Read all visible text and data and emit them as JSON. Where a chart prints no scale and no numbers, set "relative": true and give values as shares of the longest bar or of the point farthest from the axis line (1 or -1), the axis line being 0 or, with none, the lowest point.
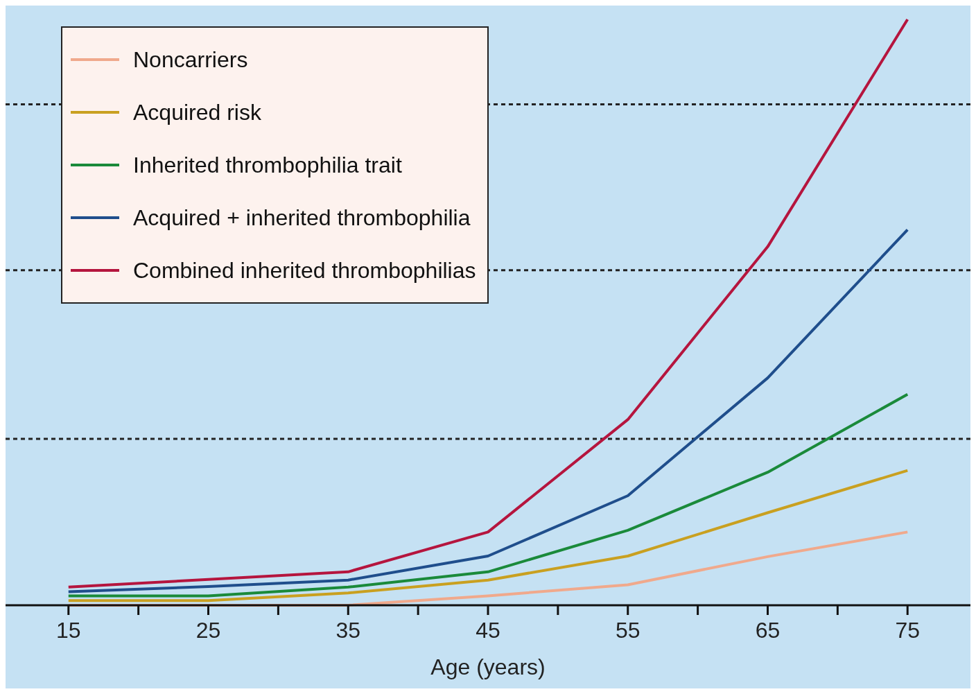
{
  "chart_data": {
    "type": "line",
    "xlabel": "Age (years)",
    "relative": true,
    "x": [
      15,
      25,
      35,
      45,
      55,
      65,
      75
    ],
    "xlim": [
      10.5,
      79.5
    ],
    "xticks": [
      15,
      {
        "value": 20,
        "label": null
      },
      25,
      {
        "value": 30,
        "label": null
      },
      35,
      {
        "value": 40,
        "label": null
      },
      45,
      {
        "value": 50,
        "label": null
      },
      55,
      {
        "value": 60,
        "label": null
      },
      65,
      {
        "value": 70,
        "label": null
      },
      75
    ],
    "series": [
      {
        "name": "Noncarriers",
        "color": "#f0a98c",
        "values": [
          0,
          0,
          0,
          0.016,
          0.035,
          0.083,
          0.125
        ]
      },
      {
        "name": "Acquired risk",
        "color": "#c9a020",
        "values": [
          0.008,
          0.008,
          0.021,
          0.043,
          0.084,
          0.158,
          0.23
        ]
      },
      {
        "name": "Inherited thrombophilia trait",
        "color": "#1a8a3a",
        "values": [
          0.016,
          0.016,
          0.031,
          0.057,
          0.128,
          0.227,
          0.36
        ]
      },
      {
        "name": "Acquired + inherited thrombophilia",
        "color": "#1f4e8c",
        "values": [
          0.023,
          0.032,
          0.043,
          0.084,
          0.187,
          0.388,
          0.641
        ]
      },
      {
        "name": "Combined inherited thrombophilias",
        "color": "#b5153e",
        "values": [
          0.031,
          0.044,
          0.057,
          0.125,
          0.317,
          0.612,
          1
        ]
      }
    ],
    "ref_lines": [
      {
        "axis": "y",
        "value": 0.284,
        "color": "#222222",
        "line_style": "dashed"
      },
      {
        "axis": "y",
        "value": 0.572,
        "color": "#222222",
        "line_style": "dashed"
      },
      {
        "axis": "y",
        "value": 0.855,
        "color": "#222222",
        "line_style": "dashed"
      }
    ],
    "legend": "top left",
    "marker": "none",
    "line_style": "solid",
    "grid": false
  }
}
